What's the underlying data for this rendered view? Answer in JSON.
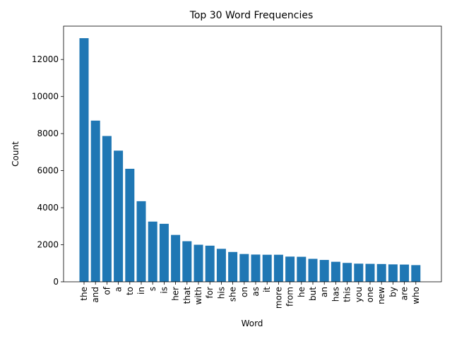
{
  "chart_data": {
    "type": "bar",
    "title": "Top 30 Word Frequencies",
    "xlabel": "Word",
    "ylabel": "Count",
    "ylim": [
      0,
      13800
    ],
    "yticks": [
      0,
      2000,
      4000,
      6000,
      8000,
      10000,
      12000
    ],
    "grid": false,
    "bar_color": "#1f77b4",
    "categories": [
      "the",
      "and",
      "of",
      "a",
      "to",
      "in",
      "s",
      "is",
      "her",
      "that",
      "with",
      "for",
      "his",
      "she",
      "on",
      "as",
      "it",
      "more",
      "from",
      "he",
      "but",
      "an",
      "has",
      "this",
      "you",
      "one",
      "new",
      "by",
      "are",
      "who"
    ],
    "values": [
      13150,
      8700,
      7870,
      7080,
      6100,
      4350,
      3250,
      3130,
      2530,
      2190,
      2000,
      1950,
      1780,
      1610,
      1500,
      1470,
      1460,
      1460,
      1360,
      1350,
      1240,
      1180,
      1080,
      1020,
      980,
      970,
      960,
      940,
      930,
      900
    ]
  }
}
